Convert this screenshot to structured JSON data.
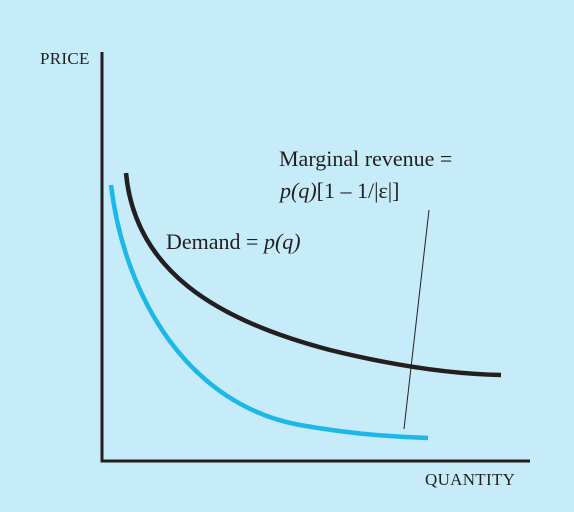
{
  "axes": {
    "y_label": "PRICE",
    "x_label": "QUANTITY"
  },
  "curves": {
    "demand": {
      "label_prefix": "Demand = ",
      "label_func": "p(q)",
      "color": "#231f20"
    },
    "marginal_revenue": {
      "label_line1": "Marginal revenue =",
      "label_func": "p(q)",
      "label_rest": "[1 – 1/|ε|]",
      "color": "#1bb8e8"
    }
  },
  "colors": {
    "background": "#c6ecf9",
    "axis": "#231f20"
  }
}
